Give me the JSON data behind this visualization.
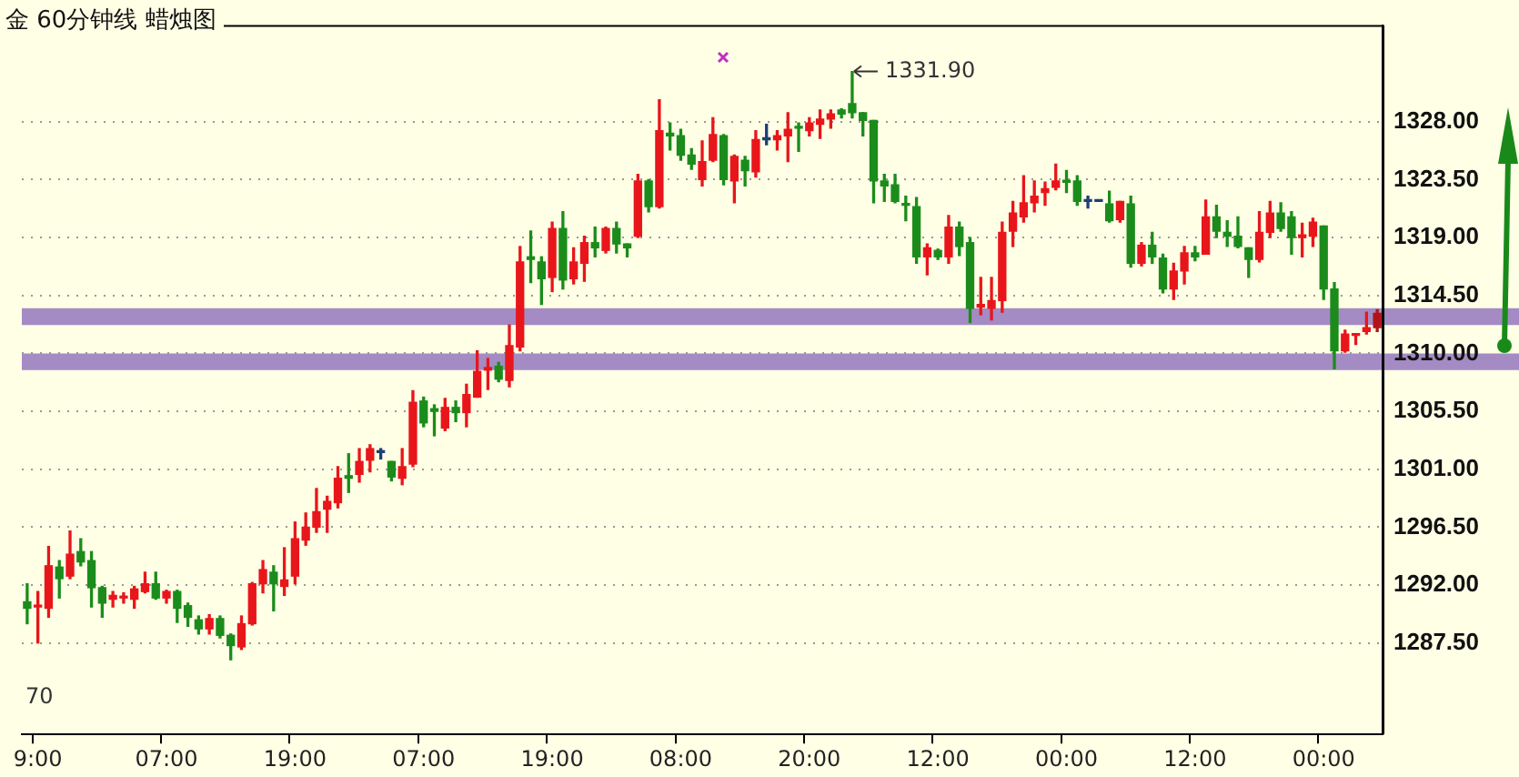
{
  "chart_data": {
    "type": "candlestick",
    "title": "金 60分钟线  蜡烛图",
    "categories": [
      null,
      "9:00",
      null,
      null,
      null,
      null,
      null,
      null,
      null,
      null,
      null,
      null,
      null,
      "07:00",
      null,
      null,
      null,
      null,
      null,
      null,
      null,
      null,
      null,
      null,
      null,
      "19:00",
      null,
      null,
      null,
      null,
      null,
      null,
      null,
      null,
      null,
      null,
      null,
      "07:00",
      null,
      null,
      null,
      null,
      null,
      null,
      null,
      null,
      null,
      null,
      null,
      "19:00",
      null,
      null,
      null,
      null,
      null,
      null,
      null,
      null,
      null,
      null,
      null,
      "08:00",
      null,
      null,
      null,
      null,
      null,
      null,
      null,
      null,
      null,
      null,
      null,
      "20:00",
      null,
      null,
      null,
      null,
      null,
      null,
      null,
      null,
      null,
      null,
      null,
      "12:00",
      null,
      null,
      null,
      null,
      null,
      null,
      null,
      null,
      null,
      null,
      null,
      "00:00",
      null,
      null,
      null,
      null,
      null,
      null,
      null,
      null,
      null,
      null,
      null,
      "12:00",
      null,
      null,
      null,
      null,
      null,
      null,
      null,
      null,
      null,
      null,
      null,
      "00:00",
      null,
      null,
      null,
      null,
      null
    ],
    "ohlc": [
      [
        1290.7,
        1292.1,
        1289.0,
        1290.2
      ],
      [
        1290.3,
        1291.5,
        1287.5,
        1290.4
      ],
      [
        1290.2,
        1295.0,
        1289.5,
        1293.5
      ],
      [
        1293.4,
        1293.9,
        1291.0,
        1292.5
      ],
      [
        1292.7,
        1296.2,
        1292.5,
        1294.4
      ],
      [
        1294.6,
        1295.6,
        1293.5,
        1293.8
      ],
      [
        1293.9,
        1294.6,
        1290.3,
        1291.8
      ],
      [
        1291.8,
        1291.9,
        1289.5,
        1290.6
      ],
      [
        1290.9,
        1291.5,
        1290.3,
        1291.2
      ],
      [
        1291.0,
        1291.4,
        1290.6,
        1291.1
      ],
      [
        1290.9,
        1291.9,
        1290.2,
        1291.7
      ],
      [
        1291.5,
        1293.0,
        1291.4,
        1292.1
      ],
      [
        1292.1,
        1293.0,
        1290.9,
        1291.0
      ],
      [
        1291.0,
        1291.6,
        1290.6,
        1291.5
      ],
      [
        1291.5,
        1291.6,
        1289.1,
        1290.2
      ],
      [
        1290.4,
        1290.6,
        1288.8,
        1289.5
      ],
      [
        1289.3,
        1289.6,
        1288.2,
        1288.6
      ],
      [
        1288.6,
        1289.7,
        1288.2,
        1289.4
      ],
      [
        1289.4,
        1289.6,
        1287.9,
        1288.1
      ],
      [
        1288.1,
        1288.2,
        1286.2,
        1287.3
      ],
      [
        1287.2,
        1289.6,
        1287.0,
        1289.0
      ],
      [
        1289.0,
        1292.2,
        1288.9,
        1292.1
      ],
      [
        1292.1,
        1293.9,
        1291.4,
        1293.2
      ],
      [
        1293.0,
        1293.5,
        1290.0,
        1292.1
      ],
      [
        1291.9,
        1294.9,
        1291.2,
        1292.4
      ],
      [
        1292.7,
        1296.9,
        1292.1,
        1295.6
      ],
      [
        1295.5,
        1297.6,
        1295.1,
        1296.5
      ],
      [
        1296.5,
        1299.5,
        1296.1,
        1297.7
      ],
      [
        1297.9,
        1298.9,
        1296.1,
        1298.5
      ],
      [
        1298.4,
        1301.2,
        1298.0,
        1300.3
      ],
      [
        1300.5,
        1302.2,
        1299.2,
        1300.3
      ],
      [
        1300.6,
        1302.6,
        1300.0,
        1301.6
      ],
      [
        1301.7,
        1302.9,
        1300.8,
        1302.6
      ],
      [
        1302.3,
        1302.6,
        1301.8,
        1302.3
      ],
      [
        1301.6,
        1301.6,
        1300.1,
        1300.4
      ],
      [
        1300.3,
        1302.6,
        1299.8,
        1301.2
      ],
      [
        1301.4,
        1307.1,
        1301.2,
        1306.2
      ],
      [
        1306.3,
        1306.6,
        1304.3,
        1304.6
      ],
      [
        1305.7,
        1306.0,
        1303.6,
        1305.5
      ],
      [
        1304.2,
        1306.5,
        1304.0,
        1305.8
      ],
      [
        1305.8,
        1306.3,
        1304.7,
        1305.4
      ],
      [
        1305.4,
        1307.6,
        1304.3,
        1306.8
      ],
      [
        1306.6,
        1310.2,
        1306.6,
        1308.6
      ],
      [
        1308.7,
        1309.6,
        1307.2,
        1308.9
      ],
      [
        1309.0,
        1309.3,
        1307.8,
        1308.0
      ],
      [
        1307.9,
        1312.2,
        1307.4,
        1310.6
      ],
      [
        1310.5,
        1318.3,
        1310.2,
        1317.1
      ],
      [
        1317.5,
        1319.5,
        1315.5,
        1317.3
      ],
      [
        1317.1,
        1317.5,
        1313.8,
        1315.8
      ],
      [
        1315.9,
        1320.2,
        1314.8,
        1319.7
      ],
      [
        1319.7,
        1321.0,
        1315.0,
        1315.7
      ],
      [
        1315.8,
        1318.2,
        1315.4,
        1317.1
      ],
      [
        1317.0,
        1319.1,
        1315.6,
        1318.6
      ],
      [
        1318.6,
        1319.8,
        1317.5,
        1318.2
      ],
      [
        1318.0,
        1319.8,
        1317.8,
        1319.7
      ],
      [
        1319.7,
        1320.2,
        1317.8,
        1318.5
      ],
      [
        1318.5,
        1318.5,
        1317.5,
        1318.2
      ],
      [
        1319.1,
        1323.9,
        1319.0,
        1323.4
      ],
      [
        1323.4,
        1323.5,
        1321.0,
        1321.4
      ],
      [
        1321.4,
        1329.7,
        1321.3,
        1327.3
      ],
      [
        1327.1,
        1327.9,
        1325.8,
        1326.9
      ],
      [
        1326.9,
        1327.4,
        1325.0,
        1325.4
      ],
      [
        1325.4,
        1325.9,
        1324.3,
        1324.7
      ],
      [
        1323.5,
        1326.5,
        1323.0,
        1324.9
      ],
      [
        1325.0,
        1328.3,
        1324.9,
        1327.0
      ],
      [
        1326.9,
        1327.0,
        1323.1,
        1323.5
      ],
      [
        1323.4,
        1325.4,
        1321.7,
        1325.3
      ],
      [
        1325.0,
        1325.3,
        1323.0,
        1324.2
      ],
      [
        1324.1,
        1327.3,
        1323.7,
        1326.6
      ],
      [
        1326.6,
        1327.8,
        1326.2,
        1326.6
      ],
      [
        1326.6,
        1327.3,
        1325.8,
        1326.9
      ],
      [
        1326.9,
        1328.7,
        1324.9,
        1327.4
      ],
      [
        1327.6,
        1327.9,
        1325.7,
        1327.5
      ],
      [
        1327.3,
        1328.3,
        1326.9,
        1327.9
      ],
      [
        1327.8,
        1328.9,
        1326.7,
        1328.2
      ],
      [
        1328.2,
        1328.9,
        1327.5,
        1328.6
      ],
      [
        1328.9,
        1329.0,
        1328.3,
        1328.6
      ],
      [
        1329.4,
        1331.9,
        1328.3,
        1328.7
      ],
      [
        1328.7,
        1328.7,
        1326.9,
        1328.1
      ],
      [
        1328.1,
        1328.1,
        1321.7,
        1323.4
      ],
      [
        1323.4,
        1323.9,
        1321.8,
        1323.0
      ],
      [
        1323.1,
        1323.9,
        1321.7,
        1321.8
      ],
      [
        1321.6,
        1322.2,
        1320.3,
        1321.5
      ],
      [
        1321.4,
        1322.1,
        1317.0,
        1317.5
      ],
      [
        1317.5,
        1318.5,
        1316.1,
        1318.2
      ],
      [
        1318.0,
        1318.1,
        1317.3,
        1317.5
      ],
      [
        1317.5,
        1320.7,
        1317.0,
        1319.8
      ],
      [
        1319.8,
        1320.2,
        1317.6,
        1318.3
      ],
      [
        1318.6,
        1319.0,
        1312.4,
        1313.5
      ],
      [
        1313.6,
        1315.9,
        1313.0,
        1313.8
      ],
      [
        1313.5,
        1315.9,
        1312.6,
        1314.1
      ],
      [
        1314.1,
        1320.2,
        1313.2,
        1319.4
      ],
      [
        1319.5,
        1321.8,
        1318.3,
        1320.9
      ],
      [
        1320.6,
        1323.8,
        1320.2,
        1321.7
      ],
      [
        1321.7,
        1323.4,
        1321.0,
        1322.2
      ],
      [
        1322.5,
        1323.3,
        1321.5,
        1322.8
      ],
      [
        1322.9,
        1324.7,
        1322.7,
        1323.4
      ],
      [
        1323.4,
        1324.2,
        1322.5,
        1323.3
      ],
      [
        1323.4,
        1323.8,
        1321.5,
        1321.8
      ],
      [
        1321.8,
        1322.2,
        1321.3,
        1321.8
      ],
      [
        1321.8,
        1321.8,
        1321.8,
        1321.8
      ],
      [
        1321.6,
        1322.6,
        1320.2,
        1320.3
      ],
      [
        1320.4,
        1321.8,
        1320.2,
        1321.8
      ],
      [
        1321.6,
        1322.2,
        1316.7,
        1317.0
      ],
      [
        1317.0,
        1318.6,
        1316.8,
        1318.4
      ],
      [
        1318.4,
        1319.4,
        1317.0,
        1317.5
      ],
      [
        1317.4,
        1317.7,
        1314.7,
        1315.0
      ],
      [
        1315.0,
        1317.0,
        1314.2,
        1316.4
      ],
      [
        1316.4,
        1318.3,
        1315.4,
        1317.8
      ],
      [
        1317.8,
        1318.3,
        1317.2,
        1317.5
      ],
      [
        1317.7,
        1321.9,
        1317.7,
        1320.6
      ],
      [
        1320.6,
        1321.5,
        1319.0,
        1319.5
      ],
      [
        1319.4,
        1320.3,
        1318.3,
        1319.1
      ],
      [
        1319.1,
        1320.6,
        1318.2,
        1318.3
      ],
      [
        1318.2,
        1318.2,
        1315.9,
        1317.3
      ],
      [
        1317.3,
        1321.0,
        1317.1,
        1319.4
      ],
      [
        1319.4,
        1321.8,
        1319.0,
        1320.9
      ],
      [
        1320.9,
        1321.7,
        1319.5,
        1319.7
      ],
      [
        1320.6,
        1321.0,
        1317.7,
        1319.0
      ],
      [
        1319.0,
        1320.1,
        1317.5,
        1319.2
      ],
      [
        1319.1,
        1320.5,
        1318.3,
        1320.2
      ],
      [
        1319.9,
        1319.9,
        1314.2,
        1315.0
      ],
      [
        1315.0,
        1315.5,
        1308.8,
        1310.2
      ],
      [
        1310.2,
        1311.8,
        1310.1,
        1311.5
      ],
      [
        1311.4,
        1311.5,
        1310.7,
        1311.5
      ],
      [
        1311.7,
        1313.2,
        1311.5,
        1312.0
      ],
      [
        1312.0,
        1313.4,
        1311.7,
        1313.1
      ]
    ],
    "colors": [
      "#1b8c1b",
      "#e8161b",
      "#e8161b",
      "#1b8c1b",
      "#e8161b",
      "#1b8c1b",
      "#1b8c1b",
      "#1b8c1b",
      "#e8161b",
      "#e8161b",
      "#e8161b",
      "#e8161b",
      "#1b8c1b",
      "#e8161b",
      "#1b8c1b",
      "#1b8c1b",
      "#1b8c1b",
      "#e8161b",
      "#1b8c1b",
      "#1b8c1b",
      "#e8161b",
      "#e8161b",
      "#e8161b",
      "#1b8c1b",
      "#e8161b",
      "#e8161b",
      "#e8161b",
      "#e8161b",
      "#e8161b",
      "#e8161b",
      "#1b8c1b",
      "#e8161b",
      "#e8161b",
      "#1f3f77",
      "#1b8c1b",
      "#e8161b",
      "#e8161b",
      "#1b8c1b",
      "#1b8c1b",
      "#e8161b",
      "#1b8c1b",
      "#e8161b",
      "#e8161b",
      "#e8161b",
      "#1b8c1b",
      "#e8161b",
      "#e8161b",
      "#1b8c1b",
      "#1b8c1b",
      "#e8161b",
      "#1b8c1b",
      "#e8161b",
      "#e8161b",
      "#1b8c1b",
      "#e8161b",
      "#1b8c1b",
      "#1b8c1b",
      "#e8161b",
      "#1b8c1b",
      "#e8161b",
      "#1b8c1b",
      "#1b8c1b",
      "#1b8c1b",
      "#e8161b",
      "#e8161b",
      "#1b8c1b",
      "#e8161b",
      "#1b8c1b",
      "#e8161b",
      "#1f3f77",
      "#e8161b",
      "#e8161b",
      "#1b8c1b",
      "#e8161b",
      "#e8161b",
      "#e8161b",
      "#1b8c1b",
      "#1b8c1b",
      "#1b8c1b",
      "#1b8c1b",
      "#1b8c1b",
      "#1b8c1b",
      "#1b8c1b",
      "#1b8c1b",
      "#e8161b",
      "#1b8c1b",
      "#e8161b",
      "#1b8c1b",
      "#1b8c1b",
      "#e8161b",
      "#e8161b",
      "#e8161b",
      "#e8161b",
      "#e8161b",
      "#e8161b",
      "#e8161b",
      "#e8161b",
      "#1b8c1b",
      "#1b8c1b",
      "#1f3f77",
      "#1f3f77",
      "#1b8c1b",
      "#e8161b",
      "#1b8c1b",
      "#e8161b",
      "#1b8c1b",
      "#1b8c1b",
      "#e8161b",
      "#e8161b",
      "#1b8c1b",
      "#e8161b",
      "#1b8c1b",
      "#1b8c1b",
      "#1b8c1b",
      "#1b8c1b",
      "#e8161b",
      "#e8161b",
      "#1b8c1b",
      "#1b8c1b",
      "#e8161b",
      "#e8161b",
      "#1b8c1b",
      "#1b8c1b",
      "#e8161b",
      "#e8161b",
      "#e8161b",
      "#b0141a"
    ],
    "ylim": [
      1280.4,
      1335.5
    ],
    "yticks": [
      {
        "value": 1287.5,
        "label": "1287.50"
      },
      {
        "value": 1292,
        "label": "1292.00"
      },
      {
        "value": 1296.5,
        "label": "1296.50"
      },
      {
        "value": 1301,
        "label": "1301.00"
      },
      {
        "value": 1305.5,
        "label": "1305.50"
      },
      {
        "value": 1310,
        "label": "1310.00"
      },
      {
        "value": 1314.5,
        "label": "1314.50"
      },
      {
        "value": 1319,
        "label": "1319.00"
      },
      {
        "value": 1323.5,
        "label": "1323.50"
      },
      {
        "value": 1328,
        "label": "1328.00"
      }
    ],
    "grid": "y",
    "bands": [
      {
        "axis": "y",
        "from": 1312.2,
        "to": 1313.5,
        "color": "#a48bc4"
      },
      {
        "axis": "y",
        "from": 1308.7,
        "to": 1310.0,
        "color": "#a48bc4"
      }
    ],
    "annotations": [
      "1331.90",
      "70"
    ]
  }
}
